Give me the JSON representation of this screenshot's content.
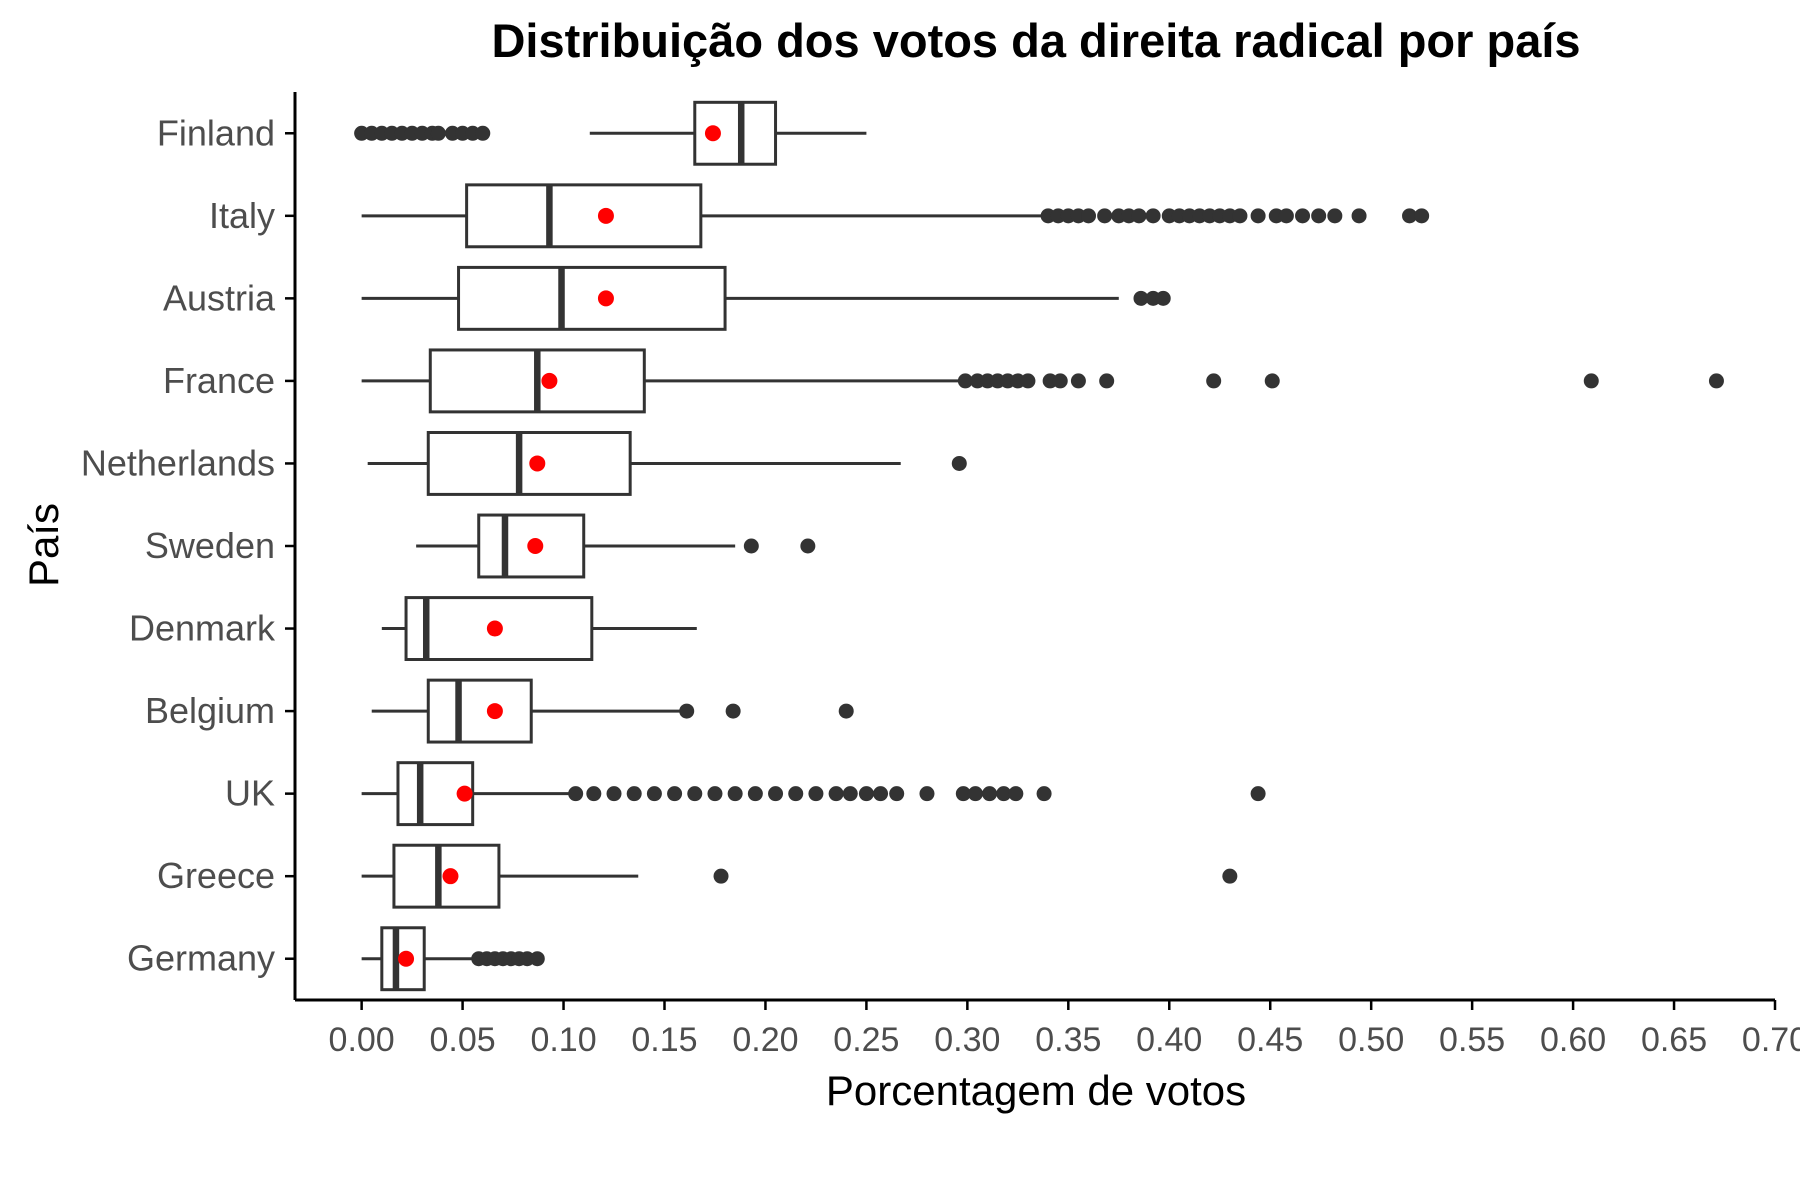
{
  "chart_data": {
    "type": "boxplot",
    "orientation": "horizontal",
    "title": "Distribuição dos votos da direita radical por país",
    "xlabel": "Porcentagem de votos",
    "ylabel": "País",
    "xlim": [
      -0.033,
      0.7
    ],
    "x_ticks": [
      0.0,
      0.05,
      0.1,
      0.15,
      0.2,
      0.25,
      0.3,
      0.35,
      0.4,
      0.45,
      0.5,
      0.55,
      0.6,
      0.65,
      0.7
    ],
    "x_tick_labels": [
      "0.00",
      "0.05",
      "0.10",
      "0.15",
      "0.20",
      "0.25",
      "0.30",
      "0.35",
      "0.40",
      "0.45",
      "0.50",
      "0.55",
      "0.60",
      "0.65",
      "0.70"
    ],
    "grid": false,
    "legend": "none",
    "colors": {
      "box_stroke": "#333333",
      "outlier": "#333333",
      "mean_point": "#ff0000",
      "axis": "#000000"
    },
    "categories": [
      "Finland",
      "Italy",
      "Austria",
      "France",
      "Netherlands",
      "Sweden",
      "Denmark",
      "Belgium",
      "UK",
      "Greece",
      "Germany"
    ],
    "boxes": [
      {
        "category": "Finland",
        "whisker_low": 0.113,
        "q1": 0.165,
        "median": 0.188,
        "q3": 0.205,
        "whisker_high": 0.25,
        "mean": 0.174,
        "outliers": [
          0.0,
          0.005,
          0.01,
          0.015,
          0.02,
          0.025,
          0.03,
          0.035,
          0.038,
          0.045,
          0.05,
          0.055,
          0.06
        ]
      },
      {
        "category": "Italy",
        "whisker_low": 0.0,
        "q1": 0.052,
        "median": 0.093,
        "q3": 0.168,
        "whisker_high": 0.34,
        "mean": 0.121,
        "outliers": [
          0.34,
          0.345,
          0.35,
          0.355,
          0.36,
          0.368,
          0.375,
          0.38,
          0.385,
          0.392,
          0.4,
          0.405,
          0.41,
          0.415,
          0.42,
          0.425,
          0.43,
          0.435,
          0.444,
          0.453,
          0.458,
          0.466,
          0.474,
          0.482,
          0.494,
          0.519,
          0.525
        ]
      },
      {
        "category": "Austria",
        "whisker_low": 0.0,
        "q1": 0.048,
        "median": 0.099,
        "q3": 0.18,
        "whisker_high": 0.375,
        "mean": 0.121,
        "outliers": [
          0.386,
          0.392,
          0.397
        ]
      },
      {
        "category": "France",
        "whisker_low": 0.0,
        "q1": 0.034,
        "median": 0.087,
        "q3": 0.14,
        "whisker_high": 0.298,
        "mean": 0.093,
        "outliers": [
          0.299,
          0.305,
          0.31,
          0.315,
          0.32,
          0.325,
          0.33,
          0.341,
          0.346,
          0.355,
          0.369,
          0.422,
          0.451,
          0.609,
          0.671
        ]
      },
      {
        "category": "Netherlands",
        "whisker_low": 0.003,
        "q1": 0.033,
        "median": 0.078,
        "q3": 0.133,
        "whisker_high": 0.267,
        "mean": 0.087,
        "outliers": [
          0.296
        ]
      },
      {
        "category": "Sweden",
        "whisker_low": 0.027,
        "q1": 0.058,
        "median": 0.071,
        "q3": 0.11,
        "whisker_high": 0.185,
        "mean": 0.086,
        "outliers": [
          0.193,
          0.221
        ]
      },
      {
        "category": "Denmark",
        "whisker_low": 0.01,
        "q1": 0.022,
        "median": 0.032,
        "q3": 0.114,
        "whisker_high": 0.166,
        "mean": 0.066,
        "outliers": []
      },
      {
        "category": "Belgium",
        "whisker_low": 0.005,
        "q1": 0.033,
        "median": 0.048,
        "q3": 0.084,
        "whisker_high": 0.16,
        "mean": 0.066,
        "outliers": [
          0.161,
          0.184,
          0.24
        ]
      },
      {
        "category": "UK",
        "whisker_low": 0.0,
        "q1": 0.018,
        "median": 0.029,
        "q3": 0.055,
        "whisker_high": 0.106,
        "mean": 0.051,
        "outliers": [
          0.106,
          0.115,
          0.125,
          0.135,
          0.145,
          0.155,
          0.165,
          0.175,
          0.185,
          0.195,
          0.205,
          0.215,
          0.225,
          0.235,
          0.242,
          0.25,
          0.257,
          0.265,
          0.28,
          0.298,
          0.304,
          0.311,
          0.318,
          0.324,
          0.338,
          0.444
        ]
      },
      {
        "category": "Greece",
        "whisker_low": 0.0,
        "q1": 0.016,
        "median": 0.038,
        "q3": 0.068,
        "whisker_high": 0.137,
        "mean": 0.044,
        "outliers": [
          0.178,
          0.43
        ]
      },
      {
        "category": "Germany",
        "whisker_low": 0.0,
        "q1": 0.01,
        "median": 0.017,
        "q3": 0.031,
        "whisker_high": 0.057,
        "mean": 0.022,
        "outliers": [
          0.058,
          0.062,
          0.066,
          0.07,
          0.074,
          0.078,
          0.082,
          0.087
        ]
      }
    ]
  }
}
